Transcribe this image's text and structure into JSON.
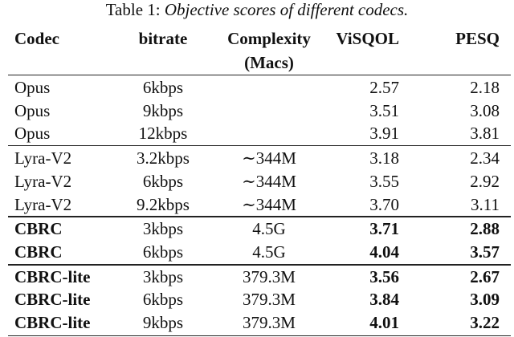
{
  "caption": {
    "label": "Table 1:",
    "text": "Objective scores of different codecs."
  },
  "table": {
    "headers": [
      "Codec",
      "bitrate",
      [
        "Complexity",
        "(Macs)"
      ],
      "ViSQOL",
      "PESQ"
    ],
    "groups": [
      {
        "bold": false,
        "rows": [
          [
            "Opus",
            "6kbps",
            null,
            "2.57",
            "2.18"
          ],
          [
            "Opus",
            "9kbps",
            null,
            "3.51",
            "3.08"
          ],
          [
            "Opus",
            "12kbps",
            null,
            "3.91",
            "3.81"
          ]
        ]
      },
      {
        "bold": false,
        "rows": [
          [
            "Lyra-V2",
            "3.2kbps",
            "∼344M",
            "3.18",
            "2.34"
          ],
          [
            "Lyra-V2",
            "6kbps",
            "∼344M",
            "3.55",
            "2.92"
          ],
          [
            "Lyra-V2",
            "9.2kbps",
            "∼344M",
            "3.70",
            "3.11"
          ]
        ]
      },
      {
        "bold": true,
        "rows": [
          [
            "CBRC",
            "3kbps",
            "4.5G",
            "3.71",
            "2.88"
          ],
          [
            "CBRC",
            "6kbps",
            "4.5G",
            "4.04",
            "3.57"
          ]
        ]
      },
      {
        "bold": true,
        "rows": [
          [
            "CBRC-lite",
            "3kbps",
            "379.3M",
            "3.56",
            "2.67"
          ],
          [
            "CBRC-lite",
            "6kbps",
            "379.3M",
            "3.84",
            "3.09"
          ],
          [
            "CBRC-lite",
            "9kbps",
            "379.3M",
            "4.01",
            "3.22"
          ]
        ]
      }
    ]
  }
}
